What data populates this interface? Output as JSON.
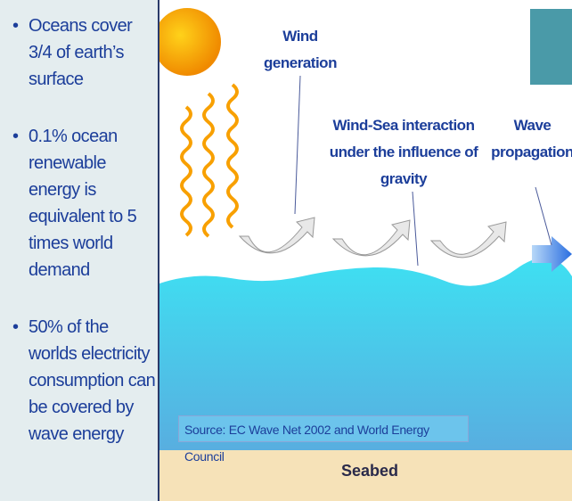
{
  "bullets": [
    "Oceans cover 3/4 of earth’s surface",
    "0.1% ocean renewable energy is equivalent to 5 times world demand",
    "50% of the worlds electricity consumption can be covered by wave energy"
  ],
  "diagram": {
    "labels": {
      "wind_generation": "Wind generation",
      "interaction": "Wind-Sea interaction under the influence of gravity",
      "propagation": "Wave propagation"
    },
    "source": "Source: EC Wave Net 2002 and World Energy Council",
    "seabed": "Seabed"
  }
}
